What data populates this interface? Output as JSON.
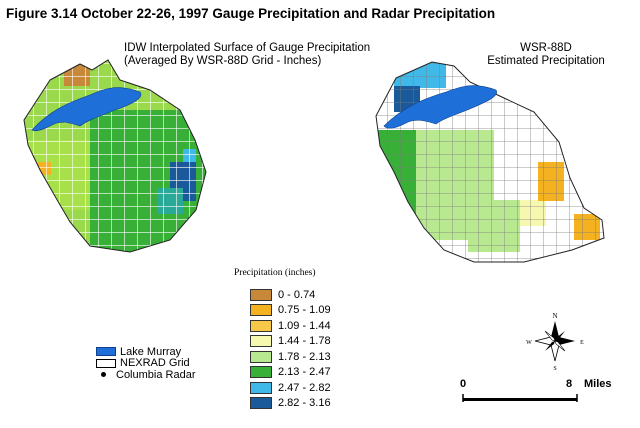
{
  "figure_title": "Figure 3.14  October 22-26, 1997 Gauge Precipitation and Radar Precipitation",
  "left_map": {
    "title_line1": "IDW Interpolated Surface of Gauge Precipitation",
    "title_line2": "(Averaged By WSR-88D Grid - Inches)"
  },
  "right_map": {
    "title_line1": "WSR-88D",
    "title_line2": "Estimated Precipitation"
  },
  "legend": {
    "title": "Precipitation (inches)",
    "classes": [
      {
        "label": "0 - 0.74",
        "color": "#c8883a"
      },
      {
        "label": "0.75 - 1.09",
        "color": "#f4b120"
      },
      {
        "label": "1.09 - 1.44",
        "color": "#f8c848"
      },
      {
        "label": "1.44 - 1.78",
        "color": "#f6f8b0"
      },
      {
        "label": "1.78 - 2.13",
        "color": "#b8e890"
      },
      {
        "label": "2.13 - 2.47",
        "color": "#38b038"
      },
      {
        "label": "2.47 - 2.82",
        "color": "#40b8e8"
      },
      {
        "label": "2.82 - 3.16",
        "color": "#1a5a9a"
      }
    ]
  },
  "layers": [
    {
      "label": "Lake Murray",
      "symbol": "lake",
      "color": "#1f6fd8"
    },
    {
      "label": "NEXRAD Grid",
      "symbol": "grid"
    },
    {
      "label": "Columbia Radar",
      "symbol": "point"
    }
  ],
  "compass": {
    "n": "N",
    "s": "S",
    "e": "E",
    "w": "W"
  },
  "scale": {
    "start": "0",
    "end": "8",
    "unit": "Miles"
  }
}
